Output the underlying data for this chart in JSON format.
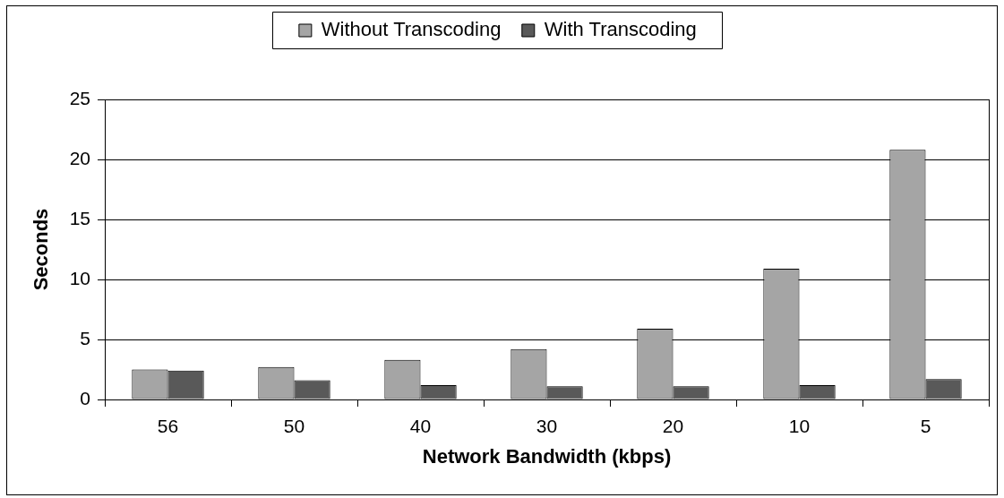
{
  "chart_data": {
    "type": "bar",
    "xlabel": "Network Bandwidth (kbps)",
    "ylabel": "Seconds",
    "categories": [
      "56",
      "50",
      "40",
      "30",
      "20",
      "10",
      "5"
    ],
    "series": [
      {
        "name": "Without Transcoding",
        "color": "#a5a5a5",
        "values": [
          2.5,
          2.7,
          3.3,
          4.2,
          5.9,
          10.9,
          20.8
        ]
      },
      {
        "name": "With Transcoding",
        "color": "#595959",
        "values": [
          2.4,
          1.6,
          1.2,
          1.1,
          1.1,
          1.2,
          1.7
        ]
      }
    ],
    "ylim": [
      0,
      25
    ],
    "yticks": [
      0,
      5,
      10,
      15,
      20,
      25
    ],
    "grid": "y",
    "legend": "top"
  }
}
